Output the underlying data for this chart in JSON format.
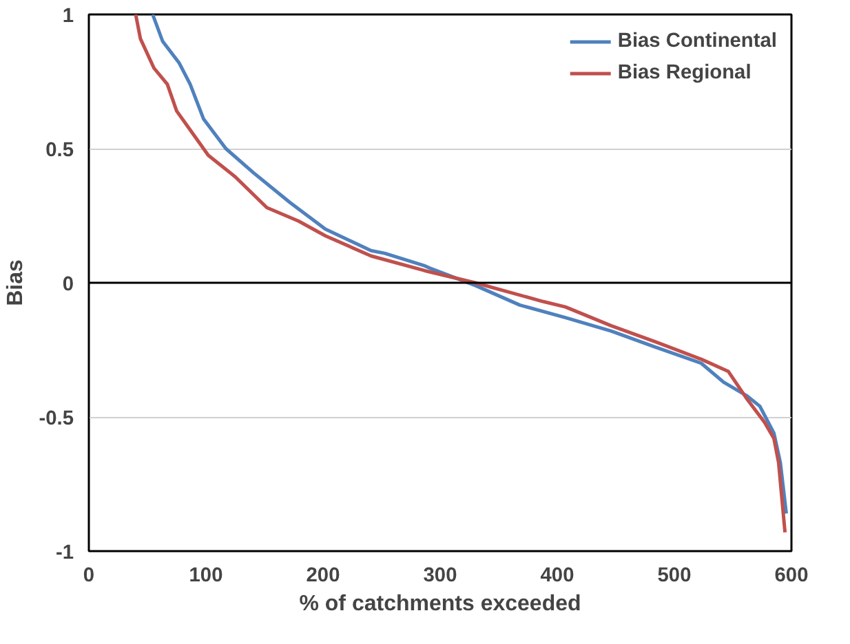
{
  "chart_data": {
    "type": "line",
    "xlabel": "% of catchments exceeded",
    "ylabel": "Bias",
    "xlim": [
      0,
      600
    ],
    "xticks": [
      0,
      100,
      200,
      300,
      400,
      500,
      600
    ],
    "ylim": [
      -1,
      1
    ],
    "yticks": [
      -1,
      -0.5,
      0,
      0.5,
      1
    ],
    "grid": "y",
    "ref_lines": [
      {
        "axis": "y",
        "value": 0,
        "color": "#000000"
      }
    ],
    "legend": "top right",
    "marker": "none",
    "line_style": "solid",
    "series": [
      {
        "name": "Bias Continental",
        "color": "#4f81bd",
        "x": [
          54.5,
          63,
          77,
          86.5,
          98,
          117,
          140.6,
          171.5,
          202,
          241,
          252.6,
          287,
          291,
          330,
          368,
          407,
          446,
          484,
          523,
          542,
          561.5,
          573,
          585,
          590.5,
          595.6
        ],
        "values": [
          1,
          0.9,
          0.82,
          0.74,
          0.61,
          0.5,
          0.41,
          0.3,
          0.2,
          0.12,
          0.11,
          0.063,
          0.055,
          -0.01,
          -0.083,
          -0.13,
          -0.18,
          -0.24,
          -0.3,
          -0.37,
          -0.42,
          -0.46,
          -0.56,
          -0.67,
          -0.86
        ]
      },
      {
        "name": "Bias Regional",
        "color": "#c0504d",
        "x": [
          40,
          44,
          55.6,
          67,
          75,
          86.5,
          102,
          125,
          152,
          179,
          202,
          241,
          287,
          330,
          388,
          407,
          446,
          484,
          523,
          546,
          561.5,
          577,
          585,
          589,
          594.5
        ],
        "values": [
          1,
          0.91,
          0.8,
          0.74,
          0.64,
          0.57,
          0.475,
          0.395,
          0.28,
          0.23,
          0.175,
          0.1,
          0.045,
          0.0,
          -0.07,
          -0.09,
          -0.16,
          -0.22,
          -0.285,
          -0.33,
          -0.43,
          -0.52,
          -0.58,
          -0.67,
          -0.93
        ]
      }
    ]
  }
}
